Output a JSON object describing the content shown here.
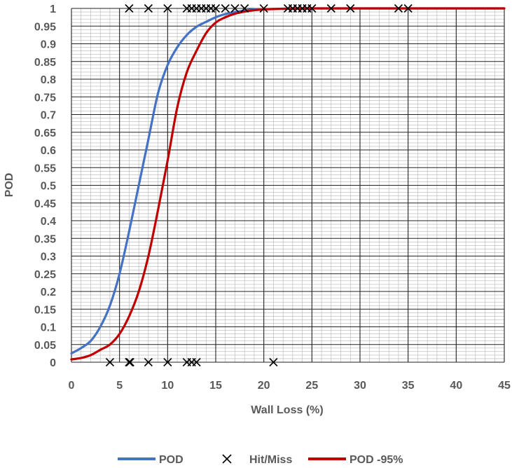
{
  "chart_data": {
    "type": "line",
    "title": "",
    "xlabel": "Wall Loss (%)",
    "ylabel": "POD",
    "xlim": [
      0,
      45
    ],
    "ylim": [
      0,
      1
    ],
    "x_ticks": [
      "0",
      "5",
      "10",
      "15",
      "20",
      "25",
      "30",
      "35",
      "40",
      "45"
    ],
    "y_ticks": [
      "0",
      "0.05",
      "0.1",
      "0.15",
      "0.2",
      "0.25",
      "0.3",
      "0.35",
      "0.4",
      "0.45",
      "0.5",
      "0.55",
      "0.6",
      "0.65",
      "0.7",
      "0.75",
      "0.8",
      "0.85",
      "0.9",
      "0.95",
      "1"
    ],
    "grid": "major and minor",
    "legend_position": "bottom",
    "series": [
      {
        "name": "POD",
        "type": "line",
        "color": "#4472C4",
        "x": [
          0,
          1,
          2,
          3,
          4,
          5,
          6,
          7,
          8,
          9,
          10,
          11,
          12,
          13,
          14,
          15,
          16,
          17,
          18,
          19,
          20,
          22,
          25,
          30,
          35,
          40,
          45
        ],
        "y": [
          0.025,
          0.04,
          0.06,
          0.1,
          0.16,
          0.25,
          0.37,
          0.5,
          0.63,
          0.76,
          0.84,
          0.89,
          0.925,
          0.948,
          0.962,
          0.975,
          0.984,
          0.99,
          0.994,
          0.997,
          0.998,
          0.999,
          1,
          1,
          1,
          1,
          1
        ]
      },
      {
        "name": "Hit/Miss",
        "type": "scatter",
        "marker": "x",
        "color": "#000000",
        "x": [
          6,
          8,
          10,
          12,
          12.5,
          13,
          13.5,
          14,
          14.5,
          15,
          16,
          17,
          18,
          20,
          22.5,
          23,
          23.5,
          24,
          24.5,
          25,
          27,
          29,
          34,
          35,
          4,
          6,
          6.1,
          8,
          10,
          12,
          12.5,
          13,
          21
        ],
        "y": [
          1,
          1,
          1,
          1,
          1,
          1,
          1,
          1,
          1,
          1,
          1,
          1,
          1,
          1,
          1,
          1,
          1,
          1,
          1,
          1,
          1,
          1,
          1,
          1,
          0,
          0,
          0,
          0,
          0,
          0,
          0,
          0,
          0
        ]
      },
      {
        "name": "POD -95%",
        "type": "line",
        "color": "#C00000",
        "x": [
          0,
          1,
          2,
          3,
          4,
          5,
          6,
          7,
          8,
          9,
          10,
          11,
          12,
          13,
          14,
          15,
          16,
          17,
          18,
          19,
          20,
          22,
          25,
          30,
          35,
          40,
          45
        ],
        "y": [
          0.008,
          0.012,
          0.02,
          0.035,
          0.05,
          0.08,
          0.13,
          0.2,
          0.3,
          0.43,
          0.57,
          0.72,
          0.82,
          0.88,
          0.93,
          0.96,
          0.975,
          0.985,
          0.991,
          0.995,
          0.997,
          0.999,
          1,
          1,
          1,
          1,
          1
        ]
      }
    ]
  }
}
